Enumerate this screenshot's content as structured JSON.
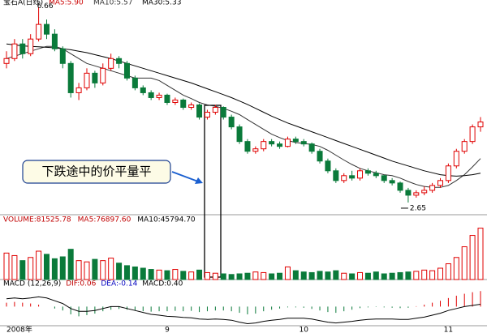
{
  "header": {
    "title": "宝石A(日线)",
    "ma": [
      "MA5:5.90",
      "MA10:5.57",
      "MA30:5.33"
    ]
  },
  "chart_data": [
    {
      "type": "candlestick",
      "categories": [
        "2008年",
        null,
        null,
        null,
        null,
        null,
        null,
        null,
        null,
        null,
        null,
        null,
        null,
        null,
        null,
        null,
        null,
        null,
        null,
        null,
        "9",
        null,
        null,
        null,
        null,
        null,
        null,
        null,
        null,
        null,
        null,
        null,
        null,
        null,
        null,
        null,
        null,
        "10",
        null,
        null,
        null,
        null,
        null,
        null,
        null,
        null,
        null,
        null,
        null,
        null,
        null,
        null,
        null,
        null,
        null,
        "11",
        null,
        null,
        null,
        null
      ],
      "ohlc": [
        [
          5.5,
          5.75,
          5.4,
          5.6
        ],
        [
          5.6,
          6.0,
          5.55,
          5.9
        ],
        [
          5.9,
          6.0,
          5.6,
          5.7
        ],
        [
          5.7,
          6.1,
          5.65,
          6.0
        ],
        [
          6.0,
          6.66,
          5.95,
          6.3
        ],
        [
          6.3,
          6.4,
          6.0,
          6.1
        ],
        [
          6.1,
          6.2,
          5.75,
          5.8
        ],
        [
          5.8,
          5.85,
          5.4,
          5.5
        ],
        [
          5.5,
          5.55,
          4.8,
          4.9
        ],
        [
          4.9,
          5.1,
          4.75,
          5.0
        ],
        [
          5.0,
          5.4,
          4.95,
          5.3
        ],
        [
          5.3,
          5.35,
          5.0,
          5.1
        ],
        [
          5.1,
          5.5,
          5.05,
          5.4
        ],
        [
          5.4,
          5.7,
          5.35,
          5.6
        ],
        [
          5.6,
          5.65,
          5.4,
          5.5
        ],
        [
          5.5,
          5.55,
          5.15,
          5.2
        ],
        [
          5.2,
          5.25,
          4.95,
          5.0
        ],
        [
          5.0,
          5.05,
          4.85,
          4.9
        ],
        [
          4.9,
          4.95,
          4.75,
          4.8
        ],
        [
          4.8,
          4.9,
          4.75,
          4.85
        ],
        [
          4.85,
          4.88,
          4.65,
          4.7
        ],
        [
          4.7,
          4.8,
          4.65,
          4.75
        ],
        [
          4.75,
          4.78,
          4.55,
          4.6
        ],
        [
          4.6,
          4.7,
          4.55,
          4.65
        ],
        [
          4.65,
          4.68,
          4.35,
          4.4
        ],
        [
          4.4,
          4.55,
          4.35,
          4.5
        ],
        [
          4.5,
          4.65,
          4.45,
          4.6
        ],
        [
          4.6,
          4.62,
          4.35,
          4.4
        ],
        [
          4.4,
          4.45,
          4.15,
          4.2
        ],
        [
          4.2,
          4.25,
          3.85,
          3.9
        ],
        [
          3.9,
          3.95,
          3.65,
          3.7
        ],
        [
          3.7,
          3.8,
          3.65,
          3.75
        ],
        [
          3.75,
          3.95,
          3.7,
          3.9
        ],
        [
          3.9,
          3.95,
          3.8,
          3.85
        ],
        [
          3.85,
          3.9,
          3.75,
          3.8
        ],
        [
          3.8,
          4.0,
          3.78,
          3.95
        ],
        [
          3.95,
          4.0,
          3.85,
          3.9
        ],
        [
          3.9,
          3.95,
          3.8,
          3.85
        ],
        [
          3.85,
          3.88,
          3.65,
          3.7
        ],
        [
          3.7,
          3.75,
          3.45,
          3.5
        ],
        [
          3.5,
          3.55,
          3.25,
          3.3
        ],
        [
          3.3,
          3.35,
          3.05,
          3.1
        ],
        [
          3.1,
          3.25,
          3.05,
          3.2
        ],
        [
          3.2,
          3.3,
          3.1,
          3.15
        ],
        [
          3.15,
          3.35,
          3.1,
          3.3
        ],
        [
          3.3,
          3.35,
          3.2,
          3.25
        ],
        [
          3.25,
          3.3,
          3.15,
          3.2
        ],
        [
          3.2,
          3.22,
          3.05,
          3.1
        ],
        [
          3.1,
          3.15,
          3.0,
          3.05
        ],
        [
          3.05,
          3.08,
          2.85,
          2.9
        ],
        [
          2.9,
          2.95,
          2.65,
          2.8
        ],
        [
          2.8,
          2.9,
          2.75,
          2.85
        ],
        [
          2.85,
          2.98,
          2.8,
          2.9
        ],
        [
          2.9,
          3.05,
          2.85,
          3.0
        ],
        [
          3.0,
          3.15,
          2.95,
          3.1
        ],
        [
          3.1,
          3.45,
          3.05,
          3.4
        ],
        [
          3.4,
          3.75,
          3.35,
          3.7
        ],
        [
          3.7,
          3.95,
          3.65,
          3.9
        ],
        [
          3.9,
          4.25,
          3.85,
          4.2
        ],
        [
          4.2,
          4.4,
          4.1,
          4.3
        ]
      ],
      "up_color": "#e00000",
      "down_color": "#0a7a3a",
      "ylim": [
        2.4,
        6.8
      ],
      "high_label": 6.66,
      "low_label": 2.65,
      "annotation": "下跌途中的价平量平",
      "series": [
        {
          "color": "#333333",
          "values": [
            5.6,
            5.65,
            5.7,
            5.75,
            5.8,
            5.85,
            5.85,
            5.8,
            5.7,
            5.6,
            5.5,
            5.45,
            5.4,
            5.35,
            5.3,
            5.25,
            5.2,
            5.2,
            5.2,
            5.15,
            5.05,
            4.95,
            4.85,
            4.78,
            4.7,
            4.65,
            4.62,
            4.58,
            4.52,
            4.45,
            4.35,
            4.25,
            4.15,
            4.05,
            3.98,
            3.92,
            3.88,
            3.86,
            3.84,
            3.8,
            3.72,
            3.62,
            3.52,
            3.43,
            3.35,
            3.3,
            3.26,
            3.22,
            3.2,
            3.15,
            3.08,
            3.02,
            2.98,
            2.96,
            2.96,
            3.0,
            3.1,
            3.22,
            3.38,
            3.55
          ]
        },
        {
          "color": "#000000",
          "values": [
            5.9,
            5.88,
            5.86,
            5.85,
            5.84,
            5.83,
            5.82,
            5.8,
            5.78,
            5.75,
            5.72,
            5.68,
            5.64,
            5.6,
            5.55,
            5.5,
            5.45,
            5.4,
            5.35,
            5.3,
            5.25,
            5.2,
            5.15,
            5.1,
            5.04,
            4.98,
            4.92,
            4.86,
            4.8,
            4.73,
            4.66,
            4.58,
            4.5,
            4.42,
            4.35,
            4.28,
            4.22,
            4.16,
            4.1,
            4.04,
            3.98,
            3.92,
            3.86,
            3.8,
            3.74,
            3.68,
            3.62,
            3.56,
            3.5,
            3.45,
            3.4,
            3.35,
            3.3,
            3.26,
            3.22,
            3.2,
            3.19,
            3.2,
            3.22,
            3.25
          ]
        }
      ]
    },
    {
      "type": "volume",
      "legend": [
        "VOLUME:81525.78",
        "MA5:76897.60",
        "MA10:45794.70"
      ],
      "legend_colors": [
        "#c00000",
        "#c00000",
        "#000000"
      ],
      "values": [
        42000,
        38000,
        30000,
        35000,
        45000,
        40000,
        33000,
        36000,
        48000,
        30000,
        28000,
        32000,
        30000,
        34000,
        26000,
        22000,
        20000,
        18000,
        16000,
        15000,
        14000,
        16000,
        13000,
        12000,
        15000,
        11000,
        10000,
        9000,
        8000,
        9000,
        10000,
        12000,
        11000,
        9000,
        10000,
        20000,
        14000,
        12000,
        11000,
        13000,
        12000,
        14000,
        10000,
        9000,
        11000,
        10000,
        12000,
        9000,
        10000,
        11000,
        12000,
        13000,
        15000,
        14000,
        18000,
        25000,
        35000,
        52000,
        70000,
        81525.78
      ],
      "ylim": [
        0,
        90000
      ]
    },
    {
      "type": "macd",
      "legend": [
        "MACD (12,26,9)",
        "DIF:0.06",
        "DEA:-0.14",
        "MACD:0.40"
      ],
      "legend_colors": [
        "#000000",
        "#c00000",
        "#0000c0",
        "#000000"
      ],
      "values": [
        0.1,
        0.12,
        0.1,
        0.08,
        0.05,
        0.0,
        -0.05,
        -0.1,
        -0.2,
        -0.25,
        -0.22,
        -0.18,
        -0.12,
        -0.08,
        -0.06,
        -0.08,
        -0.1,
        -0.12,
        -0.13,
        -0.12,
        -0.12,
        -0.11,
        -0.12,
        -0.11,
        -0.14,
        -0.12,
        -0.1,
        -0.1,
        -0.12,
        -0.16,
        -0.2,
        -0.18,
        -0.12,
        -0.08,
        -0.05,
        -0.02,
        -0.02,
        -0.03,
        -0.06,
        -0.1,
        -0.14,
        -0.16,
        -0.12,
        -0.08,
        -0.04,
        -0.02,
        -0.01,
        -0.02,
        -0.03,
        -0.04,
        -0.03,
        0.01,
        0.05,
        0.1,
        0.15,
        0.22,
        0.28,
        0.33,
        0.37,
        0.4
      ],
      "series": [
        {
          "color": "#000000",
          "values": [
            0.2,
            0.22,
            0.2,
            0.22,
            0.25,
            0.22,
            0.15,
            0.08,
            -0.05,
            -0.12,
            -0.12,
            -0.1,
            -0.05,
            0.0,
            0.0,
            -0.05,
            -0.1,
            -0.15,
            -0.2,
            -0.22,
            -0.25,
            -0.26,
            -0.28,
            -0.29,
            -0.32,
            -0.33,
            -0.32,
            -0.33,
            -0.35,
            -0.4,
            -0.44,
            -0.42,
            -0.38,
            -0.35,
            -0.33,
            -0.3,
            -0.3,
            -0.3,
            -0.32,
            -0.36,
            -0.4,
            -0.42,
            -0.4,
            -0.38,
            -0.35,
            -0.33,
            -0.32,
            -0.32,
            -0.32,
            -0.33,
            -0.33,
            -0.3,
            -0.27,
            -0.22,
            -0.17,
            -0.1,
            -0.05,
            0.0,
            0.03,
            0.06
          ]
        }
      ],
      "ylim": [
        -0.45,
        0.55
      ]
    }
  ]
}
